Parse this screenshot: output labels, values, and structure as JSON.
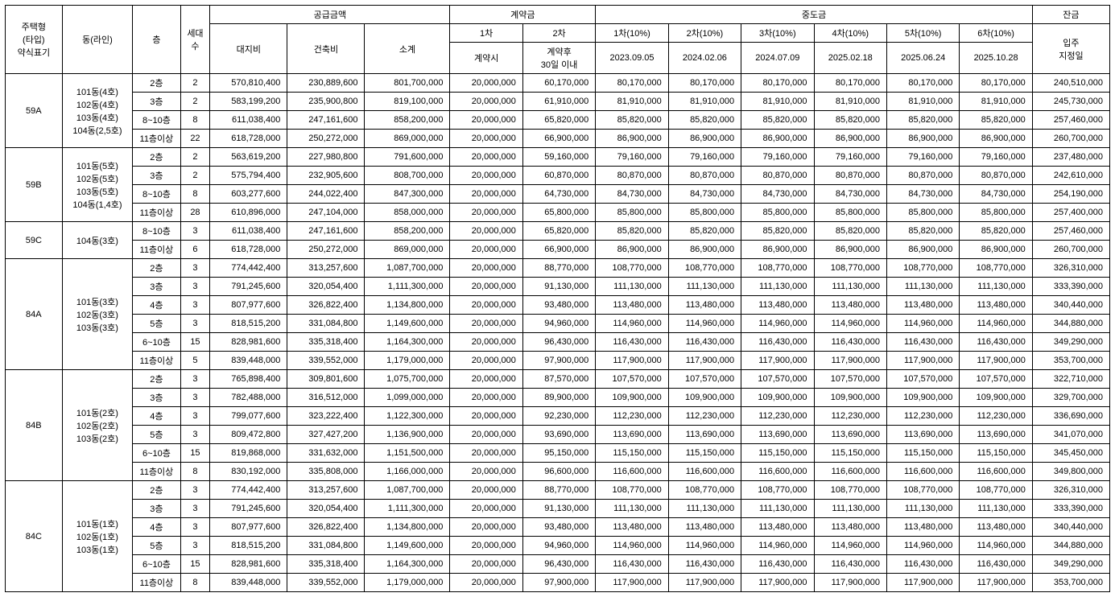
{
  "headers": {
    "type": "주택형\n(타입)\n약식표기",
    "dong": "동(라인)",
    "floor": "층",
    "units": "세대\n수",
    "supply_group": "공급금액",
    "land": "대지비",
    "build": "건축비",
    "subtotal": "소계",
    "contract_group": "계약금",
    "c1": "1차",
    "c2": "2차",
    "c1_sub": "계약시",
    "c2_sub": "계약후\n30일 이내",
    "mid_group": "중도금",
    "m1": "1차(10%)",
    "m2": "2차(10%)",
    "m3": "3차(10%)",
    "m4": "4차(10%)",
    "m5": "5차(10%)",
    "m6": "6차(10%)",
    "m1_date": "2023.09.05",
    "m2_date": "2024.02.06",
    "m3_date": "2024.07.09",
    "m4_date": "2025.02.18",
    "m5_date": "2025.06.24",
    "m6_date": "2025.10.28",
    "balance": "잔금",
    "balance_sub": "입주\n지정일"
  },
  "groups": [
    {
      "type": "59A",
      "dong": "101동(4호)\n102동(4호)\n103동(4호)\n104동(2,5호)",
      "rows": [
        {
          "floor": "2층",
          "units": "2",
          "land": "570,810,400",
          "build": "230,889,600",
          "sub": "801,700,000",
          "c1": "20,000,000",
          "c2": "60,170,000",
          "m": "80,170,000",
          "bal": "240,510,000"
        },
        {
          "floor": "3층",
          "units": "2",
          "land": "583,199,200",
          "build": "235,900,800",
          "sub": "819,100,000",
          "c1": "20,000,000",
          "c2": "61,910,000",
          "m": "81,910,000",
          "bal": "245,730,000"
        },
        {
          "floor": "8~10층",
          "units": "8",
          "land": "611,038,400",
          "build": "247,161,600",
          "sub": "858,200,000",
          "c1": "20,000,000",
          "c2": "65,820,000",
          "m": "85,820,000",
          "bal": "257,460,000"
        },
        {
          "floor": "11층이상",
          "units": "22",
          "land": "618,728,000",
          "build": "250,272,000",
          "sub": "869,000,000",
          "c1": "20,000,000",
          "c2": "66,900,000",
          "m": "86,900,000",
          "bal": "260,700,000"
        }
      ]
    },
    {
      "type": "59B",
      "dong": "101동(5호)\n102동(5호)\n103동(5호)\n104동(1,4호)",
      "rows": [
        {
          "floor": "2층",
          "units": "2",
          "land": "563,619,200",
          "build": "227,980,800",
          "sub": "791,600,000",
          "c1": "20,000,000",
          "c2": "59,160,000",
          "m": "79,160,000",
          "bal": "237,480,000"
        },
        {
          "floor": "3층",
          "units": "2",
          "land": "575,794,400",
          "build": "232,905,600",
          "sub": "808,700,000",
          "c1": "20,000,000",
          "c2": "60,870,000",
          "m": "80,870,000",
          "bal": "242,610,000"
        },
        {
          "floor": "8~10층",
          "units": "8",
          "land": "603,277,600",
          "build": "244,022,400",
          "sub": "847,300,000",
          "c1": "20,000,000",
          "c2": "64,730,000",
          "m": "84,730,000",
          "bal": "254,190,000"
        },
        {
          "floor": "11층이상",
          "units": "28",
          "land": "610,896,000",
          "build": "247,104,000",
          "sub": "858,000,000",
          "c1": "20,000,000",
          "c2": "65,800,000",
          "m": "85,800,000",
          "bal": "257,400,000"
        }
      ]
    },
    {
      "type": "59C",
      "dong": "104동(3호)",
      "rows": [
        {
          "floor": "8~10층",
          "units": "3",
          "land": "611,038,400",
          "build": "247,161,600",
          "sub": "858,200,000",
          "c1": "20,000,000",
          "c2": "65,820,000",
          "m": "85,820,000",
          "bal": "257,460,000"
        },
        {
          "floor": "11층이상",
          "units": "6",
          "land": "618,728,000",
          "build": "250,272,000",
          "sub": "869,000,000",
          "c1": "20,000,000",
          "c2": "66,900,000",
          "m": "86,900,000",
          "bal": "260,700,000"
        }
      ]
    },
    {
      "type": "84A",
      "dong": "101동(3호)\n102동(3호)\n103동(3호)",
      "rows": [
        {
          "floor": "2층",
          "units": "3",
          "land": "774,442,400",
          "build": "313,257,600",
          "sub": "1,087,700,000",
          "c1": "20,000,000",
          "c2": "88,770,000",
          "m": "108,770,000",
          "bal": "326,310,000"
        },
        {
          "floor": "3층",
          "units": "3",
          "land": "791,245,600",
          "build": "320,054,400",
          "sub": "1,111,300,000",
          "c1": "20,000,000",
          "c2": "91,130,000",
          "m": "111,130,000",
          "bal": "333,390,000"
        },
        {
          "floor": "4층",
          "units": "3",
          "land": "807,977,600",
          "build": "326,822,400",
          "sub": "1,134,800,000",
          "c1": "20,000,000",
          "c2": "93,480,000",
          "m": "113,480,000",
          "bal": "340,440,000"
        },
        {
          "floor": "5층",
          "units": "3",
          "land": "818,515,200",
          "build": "331,084,800",
          "sub": "1,149,600,000",
          "c1": "20,000,000",
          "c2": "94,960,000",
          "m": "114,960,000",
          "bal": "344,880,000"
        },
        {
          "floor": "6~10층",
          "units": "15",
          "land": "828,981,600",
          "build": "335,318,400",
          "sub": "1,164,300,000",
          "c1": "20,000,000",
          "c2": "96,430,000",
          "m": "116,430,000",
          "bal": "349,290,000"
        },
        {
          "floor": "11층이상",
          "units": "5",
          "land": "839,448,000",
          "build": "339,552,000",
          "sub": "1,179,000,000",
          "c1": "20,000,000",
          "c2": "97,900,000",
          "m": "117,900,000",
          "bal": "353,700,000"
        }
      ]
    },
    {
      "type": "84B",
      "dong": "101동(2호)\n102동(2호)\n103동(2호)",
      "rows": [
        {
          "floor": "2층",
          "units": "3",
          "land": "765,898,400",
          "build": "309,801,600",
          "sub": "1,075,700,000",
          "c1": "20,000,000",
          "c2": "87,570,000",
          "m": "107,570,000",
          "bal": "322,710,000"
        },
        {
          "floor": "3층",
          "units": "3",
          "land": "782,488,000",
          "build": "316,512,000",
          "sub": "1,099,000,000",
          "c1": "20,000,000",
          "c2": "89,900,000",
          "m": "109,900,000",
          "bal": "329,700,000"
        },
        {
          "floor": "4층",
          "units": "3",
          "land": "799,077,600",
          "build": "323,222,400",
          "sub": "1,122,300,000",
          "c1": "20,000,000",
          "c2": "92,230,000",
          "m": "112,230,000",
          "bal": "336,690,000"
        },
        {
          "floor": "5층",
          "units": "3",
          "land": "809,472,800",
          "build": "327,427,200",
          "sub": "1,136,900,000",
          "c1": "20,000,000",
          "c2": "93,690,000",
          "m": "113,690,000",
          "bal": "341,070,000"
        },
        {
          "floor": "6~10층",
          "units": "15",
          "land": "819,868,000",
          "build": "331,632,000",
          "sub": "1,151,500,000",
          "c1": "20,000,000",
          "c2": "95,150,000",
          "m": "115,150,000",
          "bal": "345,450,000"
        },
        {
          "floor": "11층이상",
          "units": "8",
          "land": "830,192,000",
          "build": "335,808,000",
          "sub": "1,166,000,000",
          "c1": "20,000,000",
          "c2": "96,600,000",
          "m": "116,600,000",
          "bal": "349,800,000"
        }
      ]
    },
    {
      "type": "84C",
      "dong": "101동(1호)\n102동(1호)\n103동(1호)",
      "rows": [
        {
          "floor": "2층",
          "units": "3",
          "land": "774,442,400",
          "build": "313,257,600",
          "sub": "1,087,700,000",
          "c1": "20,000,000",
          "c2": "88,770,000",
          "m": "108,770,000",
          "bal": "326,310,000"
        },
        {
          "floor": "3층",
          "units": "3",
          "land": "791,245,600",
          "build": "320,054,400",
          "sub": "1,111,300,000",
          "c1": "20,000,000",
          "c2": "91,130,000",
          "m": "111,130,000",
          "bal": "333,390,000"
        },
        {
          "floor": "4층",
          "units": "3",
          "land": "807,977,600",
          "build": "326,822,400",
          "sub": "1,134,800,000",
          "c1": "20,000,000",
          "c2": "93,480,000",
          "m": "113,480,000",
          "bal": "340,440,000"
        },
        {
          "floor": "5층",
          "units": "3",
          "land": "818,515,200",
          "build": "331,084,800",
          "sub": "1,149,600,000",
          "c1": "20,000,000",
          "c2": "94,960,000",
          "m": "114,960,000",
          "bal": "344,880,000"
        },
        {
          "floor": "6~10층",
          "units": "15",
          "land": "828,981,600",
          "build": "335,318,400",
          "sub": "1,164,300,000",
          "c1": "20,000,000",
          "c2": "96,430,000",
          "m": "116,430,000",
          "bal": "349,290,000"
        },
        {
          "floor": "11층이상",
          "units": "8",
          "land": "839,448,000",
          "build": "339,552,000",
          "sub": "1,179,000,000",
          "c1": "20,000,000",
          "c2": "97,900,000",
          "m": "117,900,000",
          "bal": "353,700,000"
        }
      ]
    }
  ]
}
